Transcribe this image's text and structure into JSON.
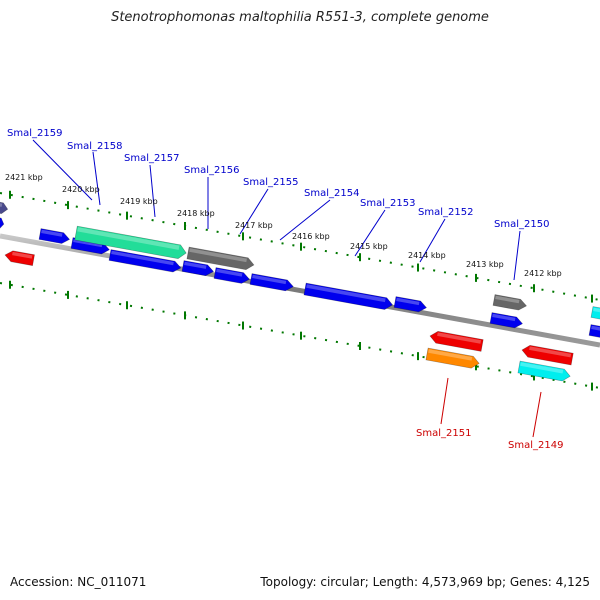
{
  "title": "Stenotrophomonas maltophilia R551-3, complete genome",
  "footer": {
    "accession": "Accession: NC_011071",
    "summary": "Topology: circular; Length: 4,573,969 bp; Genes: 4,125"
  },
  "colors": {
    "blue": "#0000ee",
    "red": "#ee0000",
    "green": "#22dd99",
    "gray": "#666666",
    "orange": "#ff8800",
    "cyan": "#00eeee",
    "navy": "#4a4a8c",
    "tick": "#007700",
    "backbone": "#888888",
    "label_top": "#0000cc",
    "label_bottom": "#cc0000"
  },
  "kbp_labels": [
    "2421 kbp",
    "2420 kbp",
    "2419 kbp",
    "2418 kbp",
    "2417 kbp",
    "2416 kbp",
    "2415 kbp",
    "2414 kbp",
    "2413 kbp",
    "2412 kbp"
  ],
  "top_gene_labels": [
    "Smal_2159",
    "Smal_2158",
    "Smal_2157",
    "Smal_2156",
    "Smal_2155",
    "Smal_2154",
    "Smal_2153",
    "Smal_2152",
    "Smal_2150"
  ],
  "bottom_gene_labels": [
    "Smal_2151",
    "Smal_2149"
  ]
}
